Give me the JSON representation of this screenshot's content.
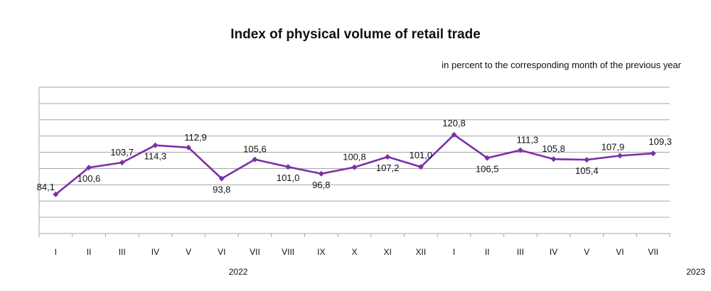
{
  "chart_data": {
    "type": "line",
    "title": "Index of physical volume of retail trade",
    "subtitle": "in percent to the corresponding month of the previous year",
    "categories": [
      "I",
      "II",
      "III",
      "IV",
      "V",
      "VI",
      "VII",
      "VIII",
      "IX",
      "X",
      "XI",
      "XII",
      "I",
      "II",
      "III",
      "IV",
      "V",
      "VI",
      "VII"
    ],
    "year_labels": [
      {
        "label": "2022",
        "from_index": 0,
        "to_index": 11
      },
      {
        "label": "2023",
        "from_index": 12,
        "to_index": 18
      }
    ],
    "series": [
      {
        "color": "#7b2fa8",
        "values": [
          84.1,
          100.6,
          103.7,
          114.3,
          112.9,
          93.8,
          105.6,
          101.0,
          96.8,
          100.8,
          107.2,
          101.0,
          120.8,
          106.5,
          111.3,
          105.8,
          105.4,
          107.9,
          109.3
        ],
        "value_labels": [
          "84,1",
          "100,6",
          "103,7",
          "114,3",
          "112,9",
          "93,8",
          "105,6",
          "101,0",
          "96,8",
          "100,8",
          "107,2",
          "101,0",
          "120,8",
          "106,5",
          "111,3",
          "105,8",
          "105,4",
          "107,9",
          "109,3"
        ]
      }
    ],
    "ylim": [
      60,
      150
    ],
    "grid": true,
    "legend": "none"
  }
}
